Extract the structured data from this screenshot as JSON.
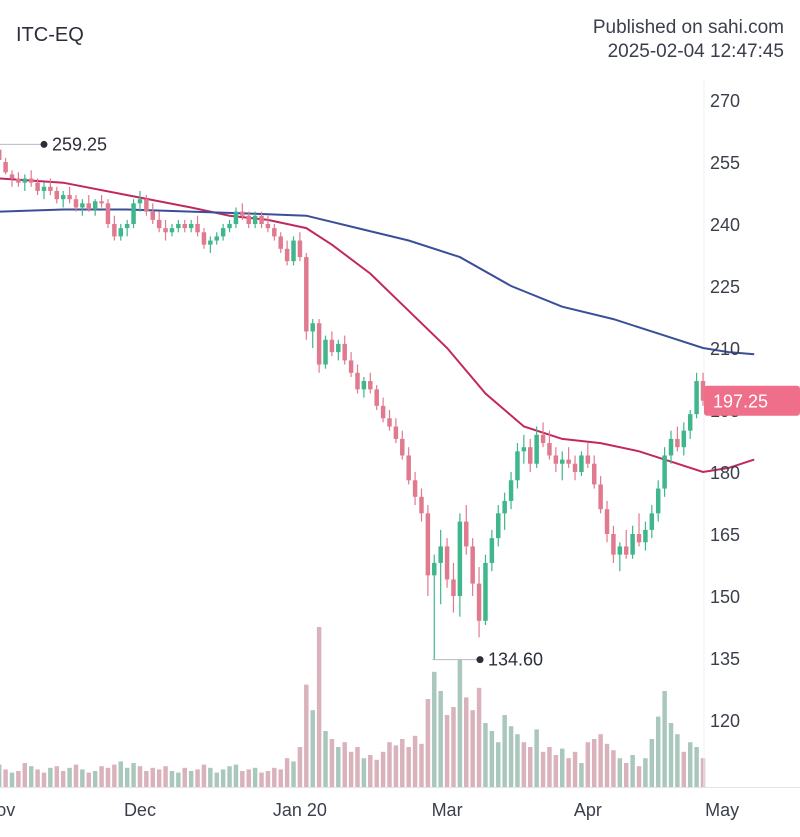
{
  "header": {
    "symbol": "ITC-EQ",
    "published_line1": "Published on sahi.com",
    "published_line2": "2025-02-04 12:47:45"
  },
  "colors": {
    "up": "#3fb68b",
    "down": "#e07a8e",
    "ema_fast": "#c2285f",
    "ema_slow": "#3b4f99",
    "vol_up": "#a9c7bd",
    "vol_down": "#d9b2bb",
    "price_tag": "#ef6f8a"
  },
  "chart_data": {
    "type": "candlestick",
    "y_axis": {
      "min": 108,
      "max": 274,
      "ticks": [
        120,
        135,
        150,
        165,
        180,
        195,
        210,
        225,
        240,
        255,
        270
      ],
      "side": "right"
    },
    "x_ticks": [
      "Nov",
      "Dec",
      "Jan 20",
      "Mar",
      "Apr",
      "May"
    ],
    "x_tick_index": [
      0,
      22,
      47,
      70,
      92,
      113
    ],
    "annotations": {
      "high": "259.25",
      "low": "134.60",
      "last_price": "197.25"
    },
    "moving_averages": [
      {
        "color": "ema_fast",
        "points": [
          [
            0,
            251
          ],
          [
            10,
            250
          ],
          [
            20,
            247
          ],
          [
            30,
            244
          ],
          [
            36,
            242
          ],
          [
            42,
            241
          ],
          [
            48,
            239
          ],
          [
            52,
            235
          ],
          [
            58,
            228
          ],
          [
            64,
            219
          ],
          [
            70,
            210
          ],
          [
            76,
            199
          ],
          [
            82,
            191
          ],
          [
            88,
            188
          ],
          [
            94,
            187
          ],
          [
            100,
            185
          ],
          [
            106,
            182
          ],
          [
            110,
            180
          ],
          [
            114,
            181
          ],
          [
            118,
            183
          ]
        ]
      },
      {
        "color": "ema_slow",
        "points": [
          [
            0,
            243
          ],
          [
            10,
            243.5
          ],
          [
            20,
            243.5
          ],
          [
            30,
            243
          ],
          [
            40,
            242.5
          ],
          [
            48,
            242
          ],
          [
            56,
            239
          ],
          [
            64,
            236
          ],
          [
            72,
            232
          ],
          [
            80,
            225
          ],
          [
            88,
            220
          ],
          [
            96,
            217
          ],
          [
            104,
            213
          ],
          [
            110,
            210
          ],
          [
            114,
            209
          ],
          [
            118,
            208.5
          ]
        ]
      }
    ],
    "candles": [
      [
        0,
        258,
        259.25,
        255,
        255.5
      ],
      [
        1,
        255,
        256,
        252,
        252.5
      ],
      [
        2,
        252,
        253,
        249,
        251
      ],
      [
        3,
        251,
        252.5,
        249,
        250
      ],
      [
        4,
        250,
        252,
        248,
        251
      ],
      [
        5,
        251,
        253,
        249,
        250
      ],
      [
        6,
        250,
        251,
        247,
        248
      ],
      [
        7,
        248,
        250,
        246,
        249
      ],
      [
        8,
        249,
        251,
        247,
        248
      ],
      [
        9,
        248,
        249,
        245,
        246
      ],
      [
        10,
        246,
        248,
        244,
        247
      ],
      [
        11,
        247,
        249,
        245,
        246
      ],
      [
        12,
        246,
        247,
        243,
        244
      ],
      [
        13,
        244,
        246,
        242,
        245
      ],
      [
        14,
        245,
        247,
        243,
        243.5
      ],
      [
        15,
        243.5,
        246,
        242,
        245.5
      ],
      [
        16,
        245.5,
        247,
        244,
        245
      ],
      [
        17,
        245,
        246,
        239,
        240
      ],
      [
        18,
        240,
        242,
        236,
        237
      ],
      [
        19,
        237,
        240,
        236,
        239
      ],
      [
        20,
        239,
        241,
        237,
        240
      ],
      [
        21,
        240,
        246,
        239,
        245
      ],
      [
        22,
        245,
        248,
        243,
        246
      ],
      [
        23,
        246,
        247,
        242,
        243
      ],
      [
        24,
        243,
        245,
        240,
        241
      ],
      [
        25,
        241,
        243,
        238,
        239
      ],
      [
        26,
        239,
        241,
        236,
        238
      ],
      [
        27,
        238,
        240,
        237,
        239
      ],
      [
        28,
        239,
        241,
        238,
        240
      ],
      [
        29,
        240,
        241,
        238,
        239
      ],
      [
        30,
        239,
        241,
        238,
        240
      ],
      [
        31,
        240,
        242,
        237,
        238
      ],
      [
        32,
        238,
        239,
        234,
        235
      ],
      [
        33,
        235,
        237,
        233,
        236
      ],
      [
        34,
        236,
        238,
        235,
        237
      ],
      [
        35,
        237,
        240,
        236,
        239
      ],
      [
        36,
        239,
        241,
        238,
        240
      ],
      [
        37,
        240,
        244,
        239,
        243
      ],
      [
        38,
        243,
        245,
        241,
        242
      ],
      [
        39,
        242,
        243,
        239,
        240
      ],
      [
        40,
        240,
        243,
        239,
        242
      ],
      [
        41,
        242,
        243,
        239,
        240
      ],
      [
        42,
        240,
        242,
        238,
        239
      ],
      [
        43,
        239,
        240,
        236,
        237
      ],
      [
        44,
        237,
        238,
        233,
        234
      ],
      [
        45,
        234,
        236,
        230,
        231
      ],
      [
        46,
        231,
        237,
        230,
        236
      ],
      [
        47,
        236,
        238,
        231,
        232
      ],
      [
        48,
        232,
        233,
        212,
        214
      ],
      [
        49,
        214,
        217,
        210,
        216
      ],
      [
        50,
        216,
        217,
        204,
        206
      ],
      [
        51,
        206,
        213,
        205,
        212
      ],
      [
        52,
        212,
        214,
        208,
        209
      ],
      [
        53,
        209,
        212,
        207,
        211
      ],
      [
        54,
        211,
        213,
        206,
        207
      ],
      [
        55,
        207,
        209,
        203,
        204
      ],
      [
        56,
        204,
        206,
        199,
        200
      ],
      [
        57,
        200,
        203,
        198,
        202
      ],
      [
        58,
        202,
        204,
        199,
        200
      ],
      [
        59,
        200,
        201,
        195,
        196
      ],
      [
        60,
        196,
        198,
        192,
        193
      ],
      [
        61,
        193,
        195,
        190,
        191
      ],
      [
        62,
        191,
        193,
        187,
        188
      ],
      [
        63,
        188,
        190,
        183,
        184
      ],
      [
        64,
        184,
        186,
        177,
        178
      ],
      [
        65,
        178,
        180,
        172,
        174
      ],
      [
        66,
        174,
        176,
        168,
        170
      ],
      [
        67,
        170,
        172,
        150,
        155
      ],
      [
        68,
        155,
        160,
        134.6,
        158
      ],
      [
        69,
        158,
        166,
        148,
        162
      ],
      [
        70,
        162,
        164,
        152,
        154
      ],
      [
        71,
        154,
        158,
        146,
        150
      ],
      [
        72,
        150,
        170,
        145,
        168
      ],
      [
        73,
        168,
        172,
        160,
        162
      ],
      [
        74,
        162,
        164,
        150,
        153
      ],
      [
        75,
        153,
        157,
        140,
        144
      ],
      [
        76,
        144,
        160,
        143,
        158
      ],
      [
        77,
        158,
        166,
        156,
        164
      ],
      [
        78,
        164,
        172,
        162,
        170
      ],
      [
        79,
        170,
        175,
        166,
        173
      ],
      [
        80,
        173,
        180,
        171,
        178
      ],
      [
        81,
        178,
        187,
        176,
        185
      ],
      [
        82,
        185,
        189,
        182,
        186
      ],
      [
        83,
        186,
        188,
        180,
        182
      ],
      [
        84,
        182,
        191,
        181,
        189
      ],
      [
        85,
        189,
        192,
        186,
        187
      ],
      [
        86,
        187,
        190,
        183,
        184
      ],
      [
        87,
        184,
        186,
        180,
        182
      ],
      [
        88,
        182,
        185,
        178,
        183
      ],
      [
        89,
        183,
        186,
        181,
        182
      ],
      [
        90,
        182,
        184,
        178,
        180
      ],
      [
        91,
        180,
        185,
        179,
        184
      ],
      [
        92,
        184,
        187,
        181,
        182
      ],
      [
        93,
        182,
        184,
        176,
        177
      ],
      [
        94,
        177,
        179,
        170,
        171
      ],
      [
        95,
        171,
        173,
        163,
        165
      ],
      [
        96,
        165,
        167,
        158,
        160
      ],
      [
        97,
        160,
        163,
        156,
        162
      ],
      [
        98,
        162,
        166,
        159,
        160
      ],
      [
        99,
        160,
        167,
        159,
        165
      ],
      [
        100,
        165,
        170,
        162,
        163
      ],
      [
        101,
        163,
        168,
        161,
        166
      ],
      [
        102,
        166,
        172,
        164,
        170
      ],
      [
        103,
        170,
        178,
        168,
        176
      ],
      [
        104,
        176,
        186,
        174,
        184
      ],
      [
        105,
        184,
        190,
        182,
        188
      ],
      [
        106,
        188,
        191,
        185,
        186
      ],
      [
        107,
        186,
        192,
        184,
        190
      ],
      [
        108,
        190,
        195,
        188,
        194
      ],
      [
        109,
        194,
        204,
        193,
        202
      ],
      [
        110,
        202,
        204,
        196,
        197.25
      ]
    ],
    "volumes": [
      [
        0,
        14,
        1
      ],
      [
        1,
        11,
        0
      ],
      [
        2,
        9,
        1
      ],
      [
        3,
        10,
        0
      ],
      [
        4,
        15,
        0
      ],
      [
        5,
        13,
        1
      ],
      [
        6,
        11,
        0
      ],
      [
        7,
        9,
        0
      ],
      [
        8,
        12,
        1
      ],
      [
        9,
        13,
        0
      ],
      [
        10,
        10,
        0
      ],
      [
        11,
        12,
        1
      ],
      [
        12,
        14,
        0
      ],
      [
        13,
        11,
        1
      ],
      [
        14,
        9,
        0
      ],
      [
        15,
        10,
        1
      ],
      [
        16,
        13,
        0
      ],
      [
        17,
        12,
        0
      ],
      [
        18,
        14,
        0
      ],
      [
        19,
        16,
        1
      ],
      [
        20,
        12,
        1
      ],
      [
        21,
        15,
        1
      ],
      [
        22,
        13,
        0
      ],
      [
        23,
        10,
        0
      ],
      [
        24,
        12,
        0
      ],
      [
        25,
        11,
        0
      ],
      [
        26,
        13,
        0
      ],
      [
        27,
        10,
        1
      ],
      [
        28,
        9,
        1
      ],
      [
        29,
        12,
        0
      ],
      [
        30,
        10,
        1
      ],
      [
        31,
        11,
        0
      ],
      [
        32,
        14,
        0
      ],
      [
        33,
        12,
        1
      ],
      [
        34,
        9,
        1
      ],
      [
        35,
        11,
        1
      ],
      [
        36,
        13,
        1
      ],
      [
        37,
        14,
        1
      ],
      [
        38,
        10,
        0
      ],
      [
        39,
        11,
        0
      ],
      [
        40,
        12,
        1
      ],
      [
        41,
        9,
        0
      ],
      [
        42,
        10,
        0
      ],
      [
        43,
        12,
        0
      ],
      [
        44,
        11,
        0
      ],
      [
        45,
        18,
        0
      ],
      [
        46,
        16,
        1
      ],
      [
        47,
        25,
        0
      ],
      [
        48,
        64,
        0
      ],
      [
        49,
        48,
        1
      ],
      [
        50,
        100,
        0
      ],
      [
        51,
        35,
        1
      ],
      [
        52,
        30,
        0
      ],
      [
        53,
        25,
        1
      ],
      [
        54,
        28,
        0
      ],
      [
        55,
        22,
        0
      ],
      [
        56,
        25,
        0
      ],
      [
        57,
        18,
        1
      ],
      [
        58,
        20,
        0
      ],
      [
        59,
        17,
        0
      ],
      [
        60,
        22,
        0
      ],
      [
        61,
        28,
        0
      ],
      [
        62,
        26,
        0
      ],
      [
        63,
        30,
        0
      ],
      [
        64,
        25,
        0
      ],
      [
        65,
        32,
        0
      ],
      [
        66,
        27,
        0
      ],
      [
        67,
        55,
        0
      ],
      [
        68,
        72,
        1
      ],
      [
        69,
        60,
        1
      ],
      [
        70,
        45,
        0
      ],
      [
        71,
        50,
        0
      ],
      [
        72,
        80,
        1
      ],
      [
        73,
        56,
        0
      ],
      [
        74,
        48,
        0
      ],
      [
        75,
        62,
        0
      ],
      [
        76,
        40,
        1
      ],
      [
        77,
        35,
        1
      ],
      [
        78,
        28,
        1
      ],
      [
        79,
        45,
        1
      ],
      [
        80,
        38,
        1
      ],
      [
        81,
        33,
        1
      ],
      [
        82,
        28,
        0
      ],
      [
        83,
        25,
        0
      ],
      [
        84,
        36,
        1
      ],
      [
        85,
        22,
        0
      ],
      [
        86,
        25,
        0
      ],
      [
        87,
        20,
        0
      ],
      [
        88,
        24,
        1
      ],
      [
        89,
        18,
        0
      ],
      [
        90,
        22,
        0
      ],
      [
        91,
        15,
        1
      ],
      [
        92,
        28,
        0
      ],
      [
        93,
        30,
        0
      ],
      [
        94,
        33,
        0
      ],
      [
        95,
        27,
        0
      ],
      [
        96,
        23,
        0
      ],
      [
        97,
        18,
        1
      ],
      [
        98,
        15,
        0
      ],
      [
        99,
        20,
        1
      ],
      [
        100,
        13,
        0
      ],
      [
        101,
        18,
        1
      ],
      [
        102,
        30,
        1
      ],
      [
        103,
        44,
        1
      ],
      [
        104,
        60,
        1
      ],
      [
        105,
        40,
        1
      ],
      [
        106,
        33,
        1
      ],
      [
        107,
        22,
        0
      ],
      [
        108,
        28,
        1
      ],
      [
        109,
        25,
        1
      ],
      [
        110,
        18,
        0
      ]
    ]
  }
}
